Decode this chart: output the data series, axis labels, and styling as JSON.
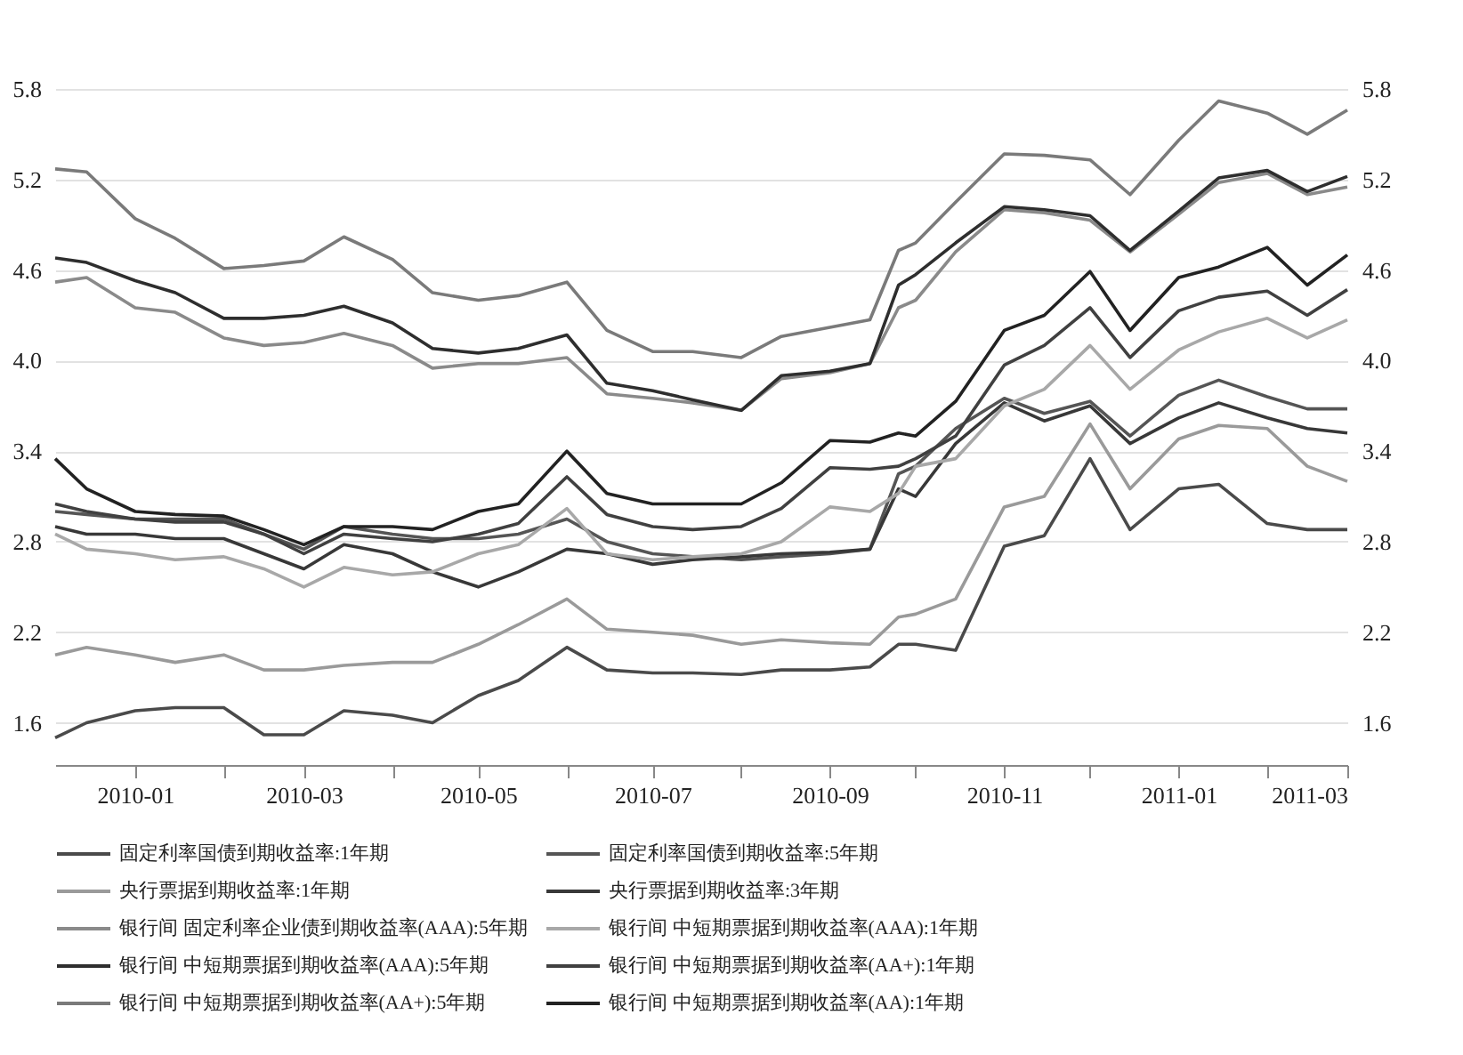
{
  "chart_data": {
    "type": "line",
    "x": [
      "2009-12-04",
      "2009-12-15",
      "2010-01-01",
      "2010-01-15",
      "2010-02-01",
      "2010-02-15",
      "2010-03-01",
      "2010-03-15",
      "2010-04-01",
      "2010-04-15",
      "2010-05-01",
      "2010-05-15",
      "2010-06-01",
      "2010-06-15",
      "2010-07-01",
      "2010-07-15",
      "2010-08-01",
      "2010-08-15",
      "2010-09-01",
      "2010-09-15",
      "2010-09-25",
      "2010-10-01",
      "2010-10-15",
      "2010-11-01",
      "2010-11-15",
      "2010-12-01",
      "2010-12-15",
      "2011-01-01",
      "2011-01-15",
      "2011-02-01",
      "2011-02-15",
      "2011-03-01"
    ],
    "series": [
      {
        "name": "固定利率国债到期收益率:1年期",
        "color": "#4a4a4a",
        "values": [
          1.5,
          1.6,
          1.68,
          1.7,
          1.7,
          1.52,
          1.52,
          1.68,
          1.65,
          1.6,
          1.78,
          1.88,
          2.1,
          1.95,
          1.93,
          1.93,
          1.92,
          1.95,
          1.95,
          1.97,
          2.12,
          2.12,
          2.08,
          2.77,
          2.84,
          3.35,
          2.88,
          3.15,
          3.18,
          2.92,
          2.88,
          2.88
        ]
      },
      {
        "name": "固定利率国债到期收益率:5年期",
        "color": "#555555",
        "values": [
          3.0,
          2.98,
          2.95,
          2.95,
          2.95,
          2.85,
          2.75,
          2.9,
          2.85,
          2.82,
          2.82,
          2.85,
          2.95,
          2.8,
          2.72,
          2.7,
          2.68,
          2.7,
          2.72,
          2.75,
          3.25,
          3.3,
          3.55,
          3.75,
          3.65,
          3.73,
          3.5,
          3.77,
          3.87,
          3.76,
          3.68,
          3.68
        ]
      },
      {
        "name": "央行票据到期收益率:1年期",
        "color": "#9a9a9a",
        "values": [
          2.05,
          2.1,
          2.05,
          2.0,
          2.05,
          1.95,
          1.95,
          1.98,
          2.0,
          2.0,
          2.12,
          2.25,
          2.42,
          2.22,
          2.2,
          2.18,
          2.12,
          2.15,
          2.13,
          2.12,
          2.3,
          2.32,
          2.42,
          3.03,
          3.1,
          3.58,
          3.15,
          3.48,
          3.57,
          3.55,
          3.3,
          3.2
        ]
      },
      {
        "name": "央行票据到期收益率:3年期",
        "color": "#383838",
        "values": [
          2.9,
          2.85,
          2.85,
          2.82,
          2.82,
          2.72,
          2.62,
          2.78,
          2.72,
          2.6,
          2.5,
          2.6,
          2.75,
          2.72,
          2.65,
          2.68,
          2.7,
          2.72,
          2.73,
          2.75,
          3.15,
          3.1,
          3.45,
          3.72,
          3.6,
          3.7,
          3.45,
          3.62,
          3.72,
          3.62,
          3.55,
          3.52
        ]
      },
      {
        "name": "银行间 固定利率企业债到期收益率(AAA):5年期",
        "color": "#8a8a8a",
        "values": [
          4.52,
          4.55,
          4.35,
          4.32,
          4.15,
          4.1,
          4.12,
          4.18,
          4.1,
          3.95,
          3.98,
          3.98,
          4.02,
          3.78,
          3.75,
          3.72,
          3.67,
          3.88,
          3.92,
          3.98,
          4.35,
          4.4,
          4.72,
          5.0,
          4.98,
          4.93,
          4.72,
          4.97,
          5.18,
          5.24,
          5.1,
          5.15
        ]
      },
      {
        "name": "银行间 中短期票据到期收益率(AAA):1年期",
        "color": "#a8a8a8",
        "values": [
          2.85,
          2.75,
          2.72,
          2.68,
          2.7,
          2.62,
          2.5,
          2.63,
          2.58,
          2.6,
          2.72,
          2.78,
          3.02,
          2.72,
          2.68,
          2.7,
          2.72,
          2.8,
          3.03,
          3.0,
          3.12,
          3.3,
          3.35,
          3.7,
          3.81,
          4.1,
          3.81,
          4.07,
          4.19,
          4.28,
          4.15,
          4.27
        ]
      },
      {
        "name": "银行间 中短期票据到期收益率(AAA):5年期",
        "color": "#2e2e2e",
        "values": [
          4.68,
          4.65,
          4.53,
          4.45,
          4.28,
          4.28,
          4.3,
          4.36,
          4.25,
          4.08,
          4.05,
          4.08,
          4.17,
          3.85,
          3.8,
          3.74,
          3.67,
          3.9,
          3.93,
          3.98,
          4.5,
          4.57,
          4.78,
          5.02,
          5.0,
          4.96,
          4.73,
          4.99,
          5.21,
          5.26,
          5.12,
          5.22
        ]
      },
      {
        "name": "银行间 中短期票据到期收益率(AA+):1年期",
        "color": "#404040",
        "values": [
          3.05,
          3.0,
          2.95,
          2.93,
          2.93,
          2.85,
          2.72,
          2.85,
          2.82,
          2.8,
          2.85,
          2.92,
          3.23,
          2.98,
          2.9,
          2.88,
          2.9,
          3.02,
          3.29,
          3.28,
          3.3,
          3.35,
          3.5,
          3.97,
          4.1,
          4.35,
          4.02,
          4.33,
          4.42,
          4.46,
          4.3,
          4.47
        ]
      },
      {
        "name": "银行间 中短期票据到期收益率(AA+):5年期",
        "color": "#7a7a7a",
        "values": [
          5.27,
          5.25,
          4.94,
          4.81,
          4.61,
          4.63,
          4.66,
          4.82,
          4.67,
          4.45,
          4.4,
          4.43,
          4.52,
          4.2,
          4.06,
          4.06,
          4.02,
          4.16,
          4.22,
          4.27,
          4.73,
          4.78,
          5.05,
          5.37,
          5.36,
          5.33,
          5.1,
          5.46,
          5.72,
          5.64,
          5.5,
          5.66
        ]
      },
      {
        "name": "银行间 中短期票据到期收益率(AA):1年期",
        "color": "#222222",
        "values": [
          3.35,
          3.15,
          3.0,
          2.98,
          2.97,
          2.88,
          2.78,
          2.9,
          2.9,
          2.88,
          3.0,
          3.05,
          3.4,
          3.12,
          3.05,
          3.05,
          3.05,
          3.19,
          3.47,
          3.46,
          3.52,
          3.5,
          3.73,
          4.2,
          4.3,
          4.59,
          4.2,
          4.55,
          4.62,
          4.75,
          4.5,
          4.7
        ]
      }
    ],
    "xlim": [
      "2009-12-04",
      "2011-03-01"
    ],
    "xticks": [
      {
        "value": "2010-01",
        "label": "2010-01"
      },
      {
        "value": "2010-02",
        "label": null
      },
      {
        "value": "2010-03",
        "label": "2010-03"
      },
      {
        "value": "2010-04",
        "label": null
      },
      {
        "value": "2010-05",
        "label": "2010-05"
      },
      {
        "value": "2010-06",
        "label": null
      },
      {
        "value": "2010-07",
        "label": "2010-07"
      },
      {
        "value": "2010-08",
        "label": null
      },
      {
        "value": "2010-09",
        "label": "2010-09"
      },
      {
        "value": "2010-10",
        "label": null
      },
      {
        "value": "2010-11",
        "label": "2010-11"
      },
      {
        "value": "2010-12",
        "label": null
      },
      {
        "value": "2011-01",
        "label": "2011-01"
      },
      {
        "value": "2011-02",
        "label": null
      },
      {
        "value": "2011-03",
        "label": "2011-03"
      }
    ],
    "ylim": [
      1.32,
      5.8
    ],
    "yticks": [
      1.6,
      2.2,
      2.8,
      3.4,
      {
        "value": 4,
        "label": "4.0"
      },
      4.6,
      5.2,
      5.8
    ],
    "y2lim": [
      1.32,
      5.8
    ],
    "y2ticks": [
      1.6,
      2.2,
      2.8,
      3.4,
      {
        "value": 4,
        "label": "4.0"
      },
      4.6,
      5.2,
      5.8
    ],
    "grid": "y",
    "legend": "bottom",
    "marker": "none",
    "line_style": "solid"
  }
}
